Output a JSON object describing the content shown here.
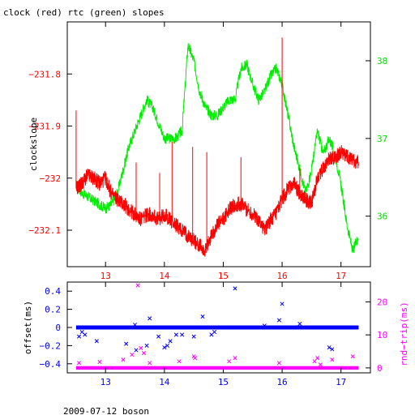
{
  "title": "clock (red) rtc (green) slopes",
  "footer": "2009-07-12 boson",
  "colors": {
    "clock": "#ff0000",
    "rtc": "#00ee00",
    "offset": "#0000ff",
    "rndtrip": "#ff00ff",
    "axis": "#000000"
  },
  "chart_data": [
    {
      "type": "line",
      "title": "clock (red) rtc (green) slopes",
      "xlim": [
        12.35,
        17.5
      ],
      "x_ticks": [
        13,
        14,
        15,
        16,
        17
      ],
      "x_tick_labels": [
        "13",
        "14",
        "15",
        "16",
        "17"
      ],
      "ylabel": "clockslope",
      "ylim": [
        -232.17,
        -231.7
      ],
      "y_ticks": [
        -231.8,
        -231.9,
        -232,
        -232.1
      ],
      "y_tick_labels": [
        "−231.8",
        "−231.9",
        "−232",
        "−232.1"
      ],
      "y2lim": [
        35.35,
        38.5
      ],
      "y2_ticks": [
        36,
        37,
        38
      ],
      "y2_tick_labels": [
        "36",
        "37",
        "38"
      ],
      "series": [
        {
          "axis": "left",
          "x": [
            12.5,
            12.6,
            12.7,
            12.8,
            12.9,
            13.0,
            13.1,
            13.2,
            13.3,
            13.4,
            13.5,
            13.6,
            13.7,
            13.8,
            13.9,
            14.0,
            14.1,
            14.2,
            14.3,
            14.4,
            14.5,
            14.6,
            14.7,
            14.8,
            14.9,
            15.0,
            15.1,
            15.2,
            15.3,
            15.4,
            15.5,
            15.6,
            15.7,
            15.8,
            15.9,
            16.0,
            16.1,
            16.2,
            16.3,
            16.4,
            16.5,
            16.6,
            16.7,
            16.8,
            16.9,
            17.0,
            17.1,
            17.2,
            17.3
          ],
          "y": [
            -232.02,
            -232.01,
            -231.995,
            -232.0,
            -232.01,
            -232.0,
            -232.03,
            -232.04,
            -232.05,
            -232.06,
            -232.07,
            -232.08,
            -232.07,
            -232.07,
            -232.08,
            -232.07,
            -232.08,
            -232.09,
            -232.1,
            -232.11,
            -232.12,
            -232.13,
            -232.14,
            -232.11,
            -232.09,
            -232.08,
            -232.06,
            -232.05,
            -232.05,
            -232.06,
            -232.07,
            -232.08,
            -232.1,
            -232.08,
            -232.07,
            -232.04,
            -232.02,
            -232.01,
            -232.03,
            -232.04,
            -232.05,
            -232.0,
            -231.98,
            -231.96,
            -231.96,
            -231.95,
            -231.96,
            -231.965,
            -231.97
          ],
          "spikes": [
            {
              "x": 12.5,
              "y": -231.87
            },
            {
              "x": 13.52,
              "y": -231.97
            },
            {
              "x": 13.92,
              "y": -231.99
            },
            {
              "x": 14.13,
              "y": -231.93
            },
            {
              "x": 14.48,
              "y": -231.94
            },
            {
              "x": 14.72,
              "y": -231.95
            },
            {
              "x": 15.3,
              "y": -231.96
            },
            {
              "x": 16.0,
              "y": -231.73
            },
            {
              "x": 16.3,
              "y": -231.98
            }
          ]
        },
        {
          "axis": "right",
          "x": [
            12.5,
            12.6,
            12.7,
            12.8,
            12.9,
            13.0,
            13.1,
            13.2,
            13.3,
            13.4,
            13.5,
            13.6,
            13.7,
            13.8,
            13.9,
            14.0,
            14.1,
            14.2,
            14.3,
            14.4,
            14.5,
            14.6,
            14.7,
            14.8,
            14.9,
            15.0,
            15.1,
            15.2,
            15.3,
            15.4,
            15.5,
            15.6,
            15.7,
            15.8,
            15.9,
            16.0,
            16.1,
            16.2,
            16.3,
            16.4,
            16.5,
            16.6,
            16.7,
            16.8,
            16.9,
            17.0,
            17.1,
            17.2,
            17.3
          ],
          "y": [
            36.4,
            36.3,
            36.25,
            36.2,
            36.15,
            36.1,
            36.15,
            36.3,
            36.6,
            36.9,
            37.1,
            37.3,
            37.5,
            37.4,
            37.2,
            37.0,
            37.0,
            37.0,
            37.1,
            38.2,
            38.0,
            37.6,
            37.4,
            37.3,
            37.3,
            37.4,
            37.5,
            37.5,
            37.9,
            37.95,
            37.7,
            37.5,
            37.6,
            37.8,
            37.9,
            37.7,
            37.3,
            36.9,
            36.6,
            36.3,
            36.6,
            37.1,
            36.8,
            37.0,
            36.8,
            36.4,
            35.9,
            35.55,
            35.75
          ]
        }
      ]
    },
    {
      "type": "scatter",
      "xlim": [
        12.35,
        17.5
      ],
      "x_ticks": [
        13,
        14,
        15,
        16,
        17
      ],
      "x_tick_labels": [
        "13",
        "14",
        "15",
        "16",
        "17"
      ],
      "ylabel": "offset(ms)",
      "ylim": [
        -0.5,
        0.5
      ],
      "y_ticks": [
        0.4,
        0.2,
        0,
        -0.2,
        -0.4
      ],
      "y_tick_labels": [
        "0.4",
        "0.2",
        "0",
        "−0.2",
        "−0.4"
      ],
      "y2label": "rnd−trip(ms)",
      "y2lim": [
        -1.5,
        26
      ],
      "y2_ticks": [
        0,
        10,
        20
      ],
      "y2_tick_labels": [
        "0",
        "10",
        "20"
      ],
      "series": [
        {
          "axis": "left",
          "marker": "x",
          "baseline": 0.0,
          "x": [
            12.55,
            12.6,
            12.65,
            12.85,
            13.35,
            13.5,
            13.52,
            13.7,
            13.75,
            13.9,
            14.0,
            14.05,
            14.1,
            14.2,
            14.3,
            14.5,
            14.65,
            14.8,
            14.85,
            15.2,
            15.7,
            15.95,
            16.0,
            16.3,
            16.8,
            16.85
          ],
          "y": [
            -0.1,
            -0.05,
            -0.08,
            -0.15,
            -0.18,
            0.03,
            -0.25,
            -0.2,
            0.1,
            -0.1,
            -0.22,
            -0.2,
            -0.15,
            -0.08,
            -0.08,
            -0.1,
            0.12,
            -0.08,
            -0.05,
            0.43,
            0.02,
            0.08,
            0.26,
            0.04,
            -0.22,
            -0.24
          ]
        },
        {
          "axis": "right",
          "marker": "x",
          "baseline": 0.0,
          "x": [
            12.55,
            12.9,
            13.3,
            13.45,
            13.55,
            13.6,
            13.65,
            13.75,
            14.25,
            14.5,
            14.52,
            15.1,
            15.2,
            15.95,
            16.55,
            16.6,
            16.65,
            16.85,
            17.2
          ],
          "y": [
            1.5,
            1.8,
            2.5,
            4.0,
            25.0,
            6.0,
            4.5,
            1.5,
            2.0,
            3.5,
            3.0,
            2.0,
            3.0,
            1.5,
            2.0,
            3.0,
            1.0,
            2.5,
            3.5
          ]
        }
      ]
    }
  ]
}
